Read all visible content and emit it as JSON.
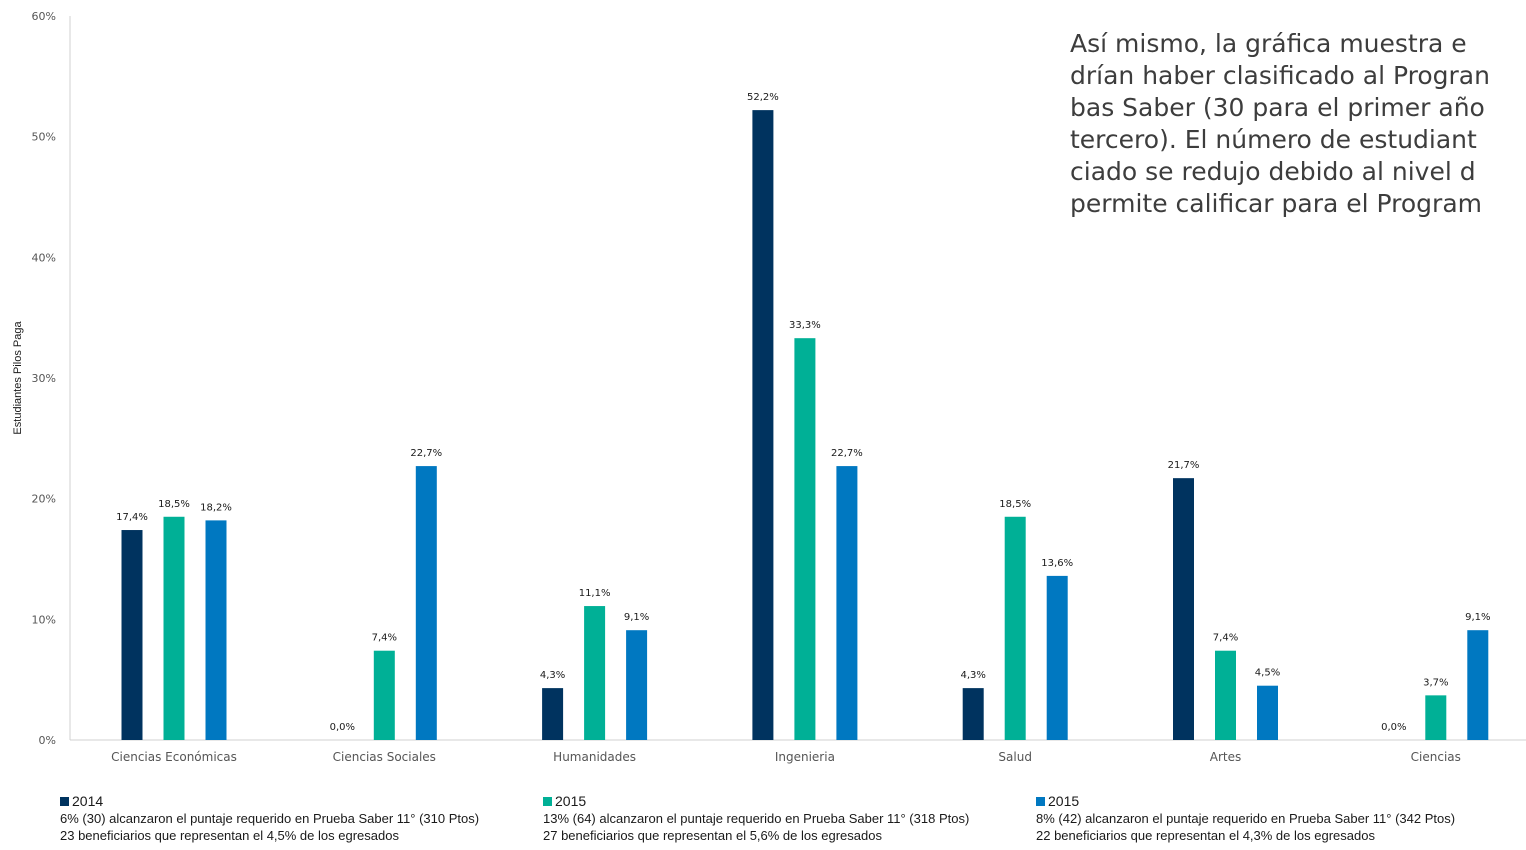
{
  "colors": {
    "series_2014": "#00335f",
    "series_2015a": "#00b096",
    "series_2015b": "#0078c1",
    "axis": "#d0d0d0",
    "tick_text": "#555555",
    "label_text": "#1a1a1a"
  },
  "overlay_text": {
    "line1": "Así mismo, la gráfica muestra e",
    "line2": "drían haber clasificado al Progran",
    "line3": "bas Saber (30 para el primer año",
    "line4": "tercero). El número de estudiant",
    "line5": "ciado se redujo debido al nivel d",
    "line6": "permite calificar para el Program"
  },
  "chart_data": {
    "type": "bar",
    "ylabel": "Estudiantes Pilos Paga",
    "xlabel": "",
    "ylim": [
      0,
      60
    ],
    "y_ticks": [
      "0%",
      "10%",
      "20%",
      "30%",
      "40%",
      "50%",
      "60%"
    ],
    "categories": [
      "Ciencias Económicas",
      "Ciencias Sociales",
      "Humanidades",
      "Ingenieria",
      "Salud",
      "Artes",
      "Ciencias"
    ],
    "series": [
      {
        "name": "2014",
        "values": [
          17.4,
          0.0,
          4.3,
          52.2,
          4.3,
          21.7,
          0.0
        ],
        "labels": [
          "17,4%",
          "0,0%",
          "4,3%",
          "52,2%",
          "4,3%",
          "21,7%",
          "0,0%"
        ]
      },
      {
        "name": "2015",
        "values": [
          18.5,
          7.4,
          11.1,
          33.3,
          18.5,
          7.4,
          3.7
        ],
        "labels": [
          "18,5%",
          "7,4%",
          "11,1%",
          "33,3%",
          "18,5%",
          "7,4%",
          "3,7%"
        ]
      },
      {
        "name": "2015",
        "values": [
          18.2,
          22.7,
          9.1,
          22.7,
          13.6,
          4.5,
          9.1
        ],
        "labels": [
          "18,2%",
          "22,7%",
          "9,1%",
          "22,7%",
          "13,6%",
          "4,5%",
          "9,1%"
        ]
      }
    ],
    "legend_position": "bottom",
    "grid": false
  },
  "legend": [
    {
      "year": "2014",
      "line1": "6% (30) alcanzaron el puntaje requerido en Prueba Saber 11° (310 Ptos)",
      "line2": "23 beneficiarios que representan el 4,5% de los egresados"
    },
    {
      "year": "2015",
      "line1": "13% (64) alcanzaron el puntaje requerido en Prueba Saber 11° (318 Ptos)",
      "line2": "27 beneficiarios que representan el 5,6% de los egresados"
    },
    {
      "year": "2015",
      "line1": "8% (42) alcanzaron el puntaje requerido en Prueba Saber 11° (342 Ptos)",
      "line2": "22 beneficiarios que representan el 4,3% de los egresados"
    }
  ]
}
